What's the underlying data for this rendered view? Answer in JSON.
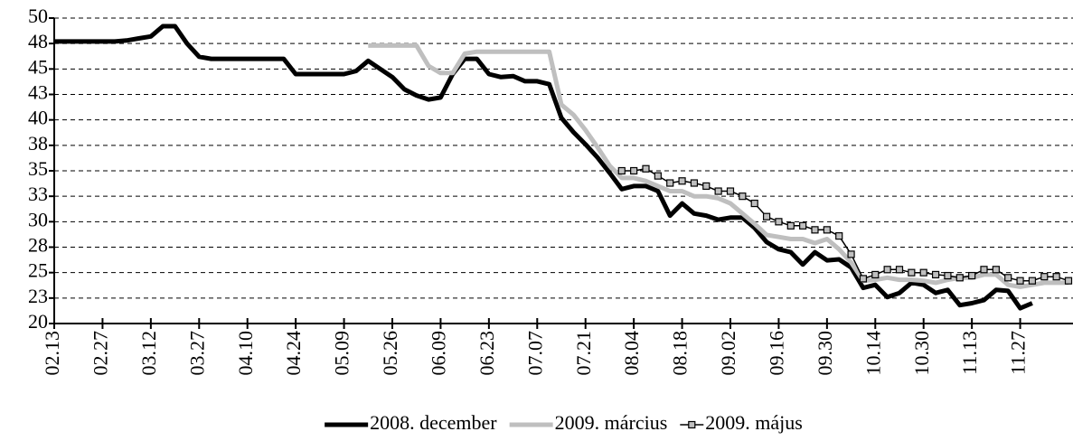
{
  "chart_data": {
    "type": "line",
    "categories": [
      "02.13",
      null,
      null,
      null,
      "02.27",
      null,
      null,
      null,
      "03.12",
      null,
      null,
      null,
      "03.27",
      null,
      null,
      null,
      "04.10",
      null,
      null,
      null,
      "04.24",
      null,
      null,
      null,
      "05.09",
      null,
      null,
      null,
      "05.26",
      null,
      null,
      null,
      "06.09",
      null,
      null,
      null,
      "06.23",
      null,
      null,
      null,
      "07.07",
      null,
      null,
      null,
      "07.21",
      null,
      null,
      null,
      "08.04",
      null,
      null,
      null,
      "08.18",
      null,
      null,
      null,
      "09.02",
      null,
      null,
      null,
      "09.16",
      null,
      null,
      null,
      "09.30",
      null,
      null,
      null,
      "10.14",
      null,
      null,
      null,
      "10.30",
      null,
      null,
      null,
      "11.13",
      null,
      null,
      null,
      "11.27",
      null,
      null,
      null,
      null
    ],
    "series": [
      {
        "name": "2008. december",
        "color": "#000000",
        "marker": "none",
        "values": [
          47.7,
          47.7,
          47.7,
          47.7,
          47.7,
          47.7,
          47.8,
          48,
          48.2,
          49.2,
          49.2,
          47.5,
          46.2,
          46,
          46,
          46,
          46,
          46,
          46,
          46,
          44.5,
          44.5,
          44.5,
          44.5,
          44.5,
          44.8,
          45.8,
          45,
          44.2,
          43,
          42.4,
          42,
          42.2,
          44.5,
          46,
          46,
          44.5,
          44.2,
          44.3,
          43.8,
          43.8,
          43.5,
          40.2,
          38.8,
          37.6,
          36.3,
          34.8,
          33.2,
          33.5,
          33.5,
          33,
          30.6,
          31.8,
          30.8,
          30.6,
          30.2,
          30.4,
          30.4,
          29.4,
          28,
          27.3,
          27,
          25.8,
          27,
          26.2,
          26.3,
          25.5,
          23.5,
          23.8,
          22.6,
          23,
          24,
          23.8,
          23,
          23.3,
          21.8,
          22,
          22.3,
          23.3,
          23.2,
          21.5,
          22,
          null,
          null,
          null
        ]
      },
      {
        "name": "2009. március",
        "color": "#bfbfbf",
        "marker": "none",
        "values": [
          null,
          null,
          null,
          null,
          null,
          null,
          null,
          null,
          null,
          null,
          null,
          null,
          null,
          null,
          null,
          null,
          null,
          null,
          null,
          null,
          null,
          null,
          null,
          null,
          null,
          null,
          47.3,
          47.3,
          47.3,
          47.3,
          47.3,
          45.3,
          44.6,
          44.6,
          46.5,
          46.7,
          46.7,
          46.7,
          46.7,
          46.7,
          46.7,
          46.7,
          41.5,
          40.5,
          39,
          37.3,
          35.5,
          34.3,
          34.3,
          34,
          33.5,
          33,
          33,
          32.5,
          32.5,
          32.3,
          31.8,
          30.8,
          29.8,
          28.7,
          28.5,
          28.3,
          28.3,
          27.9,
          28.3,
          27.3,
          26,
          24.2,
          24.3,
          24.5,
          24.3,
          24.3,
          24.2,
          24,
          24.3,
          24.5,
          24.5,
          24.8,
          24.8,
          23.8,
          23.6,
          23.8,
          24,
          24,
          24
        ]
      },
      {
        "name": "2009. május",
        "color": "#000000",
        "marker": "square",
        "values": [
          null,
          null,
          null,
          null,
          null,
          null,
          null,
          null,
          null,
          null,
          null,
          null,
          null,
          null,
          null,
          null,
          null,
          null,
          null,
          null,
          null,
          null,
          null,
          null,
          null,
          null,
          null,
          null,
          null,
          null,
          null,
          null,
          null,
          null,
          null,
          null,
          null,
          null,
          null,
          null,
          null,
          null,
          null,
          null,
          null,
          null,
          null,
          35,
          35,
          35.2,
          34.5,
          33.8,
          34,
          33.8,
          33.5,
          33,
          33,
          32.5,
          31.8,
          30.5,
          30,
          29.6,
          29.6,
          29.2,
          29.2,
          28.6,
          26.8,
          24.4,
          24.8,
          25.3,
          25.3,
          25,
          25,
          24.8,
          24.7,
          24.5,
          24.7,
          25.3,
          25.3,
          24.5,
          24.2,
          24.2,
          24.6,
          24.6,
          24.2
        ]
      }
    ],
    "ylim": [
      20,
      50
    ],
    "yticks": [
      20,
      {
        "value": 22.5,
        "label": "23"
      },
      25,
      {
        "value": 27.5,
        "label": "28"
      },
      30,
      {
        "value": 32.5,
        "label": "33"
      },
      35,
      {
        "value": 37.5,
        "label": "38"
      },
      40,
      {
        "value": 42.5,
        "label": "43"
      },
      45,
      {
        "value": 47.5,
        "label": "48"
      },
      50
    ],
    "grid": true,
    "legend": "bottom"
  }
}
